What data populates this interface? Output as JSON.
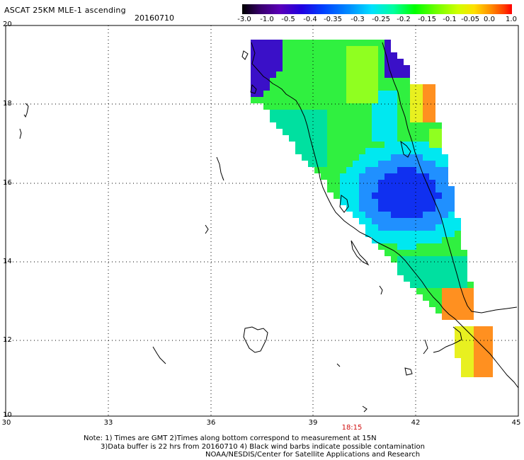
{
  "header": {
    "title": "ASCAT 25KM MLE-1 ascending",
    "date": "20160710"
  },
  "colorbar": {
    "ticks": [
      "-3.0",
      "-1.0",
      "-0.5",
      "-0.4",
      "-0.35",
      "-0.3",
      "-0.25",
      "-0.2",
      "-0.15",
      "-0.1",
      "-0.05",
      "0.0",
      "1.0"
    ],
    "colors": [
      "#000000",
      "#3a0070",
      "#5a00b8",
      "#2000e0",
      "#0040ff",
      "#0090ff",
      "#00e0ff",
      "#00ffa0",
      "#00ff00",
      "#70ff00",
      "#d0ff00",
      "#ffe000",
      "#ff9000",
      "#ff4000",
      "#ff0000"
    ]
  },
  "axes": {
    "x_ticks": [
      "30",
      "33",
      "36",
      "39",
      "42",
      "45"
    ],
    "y_ticks": [
      "20",
      "18",
      "16",
      "14",
      "12",
      "10"
    ],
    "x_range_lon": [
      30,
      45
    ],
    "y_range_lat": [
      10,
      20
    ],
    "grid": "dotted"
  },
  "time_label": "18:15",
  "notes": {
    "line1": "Note: 1) Times are GMT 2)Times along bottom correspond to measurement at 15N",
    "line2": "3)Data buffer is 22 hrs from 20160710 4) Black wind barbs indicate possible contamination",
    "line3": "NOAA/NESDIS/Center for Satellite Applications and Research"
  },
  "swath_colors": {
    "purple": "#3a10c8",
    "blue": "#1030f0",
    "lightblue": "#2090ff",
    "cyan": "#00e8f0",
    "teal": "#00e0a0",
    "green": "#30f040",
    "lime": "#90ff20",
    "yellow": "#e8f020",
    "orange": "#ff9020",
    "red": "#ff5010"
  }
}
